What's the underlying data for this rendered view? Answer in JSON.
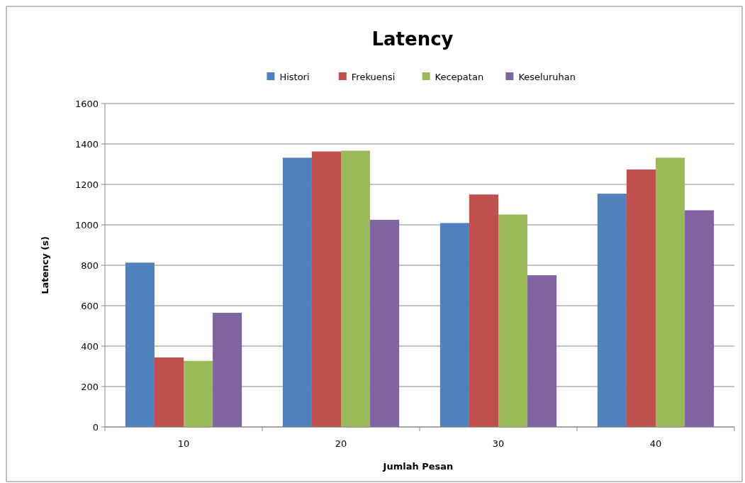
{
  "chart_data": {
    "type": "bar",
    "title": "Latency",
    "xlabel": "Jumlah Pesan",
    "ylabel": "Latency (s)",
    "categories": [
      "10",
      "20",
      "30",
      "40"
    ],
    "series": [
      {
        "name": "Histori",
        "color": "#4f81bd",
        "values": [
          813,
          1332,
          1009,
          1154
        ]
      },
      {
        "name": "Frekuensi",
        "color": "#c0504d",
        "values": [
          344,
          1363,
          1150,
          1274
        ]
      },
      {
        "name": "Kecepatan",
        "color": "#9bbb59",
        "values": [
          327,
          1367,
          1051,
          1332
        ]
      },
      {
        "name": "Keseluruhan",
        "color": "#8064a2",
        "values": [
          565,
          1025,
          751,
          1072
        ]
      }
    ],
    "ylim": [
      0,
      1600
    ],
    "yticks": [
      0,
      200,
      400,
      600,
      800,
      1000,
      1200,
      1400,
      1600
    ],
    "grid": "y",
    "legend": "top"
  }
}
